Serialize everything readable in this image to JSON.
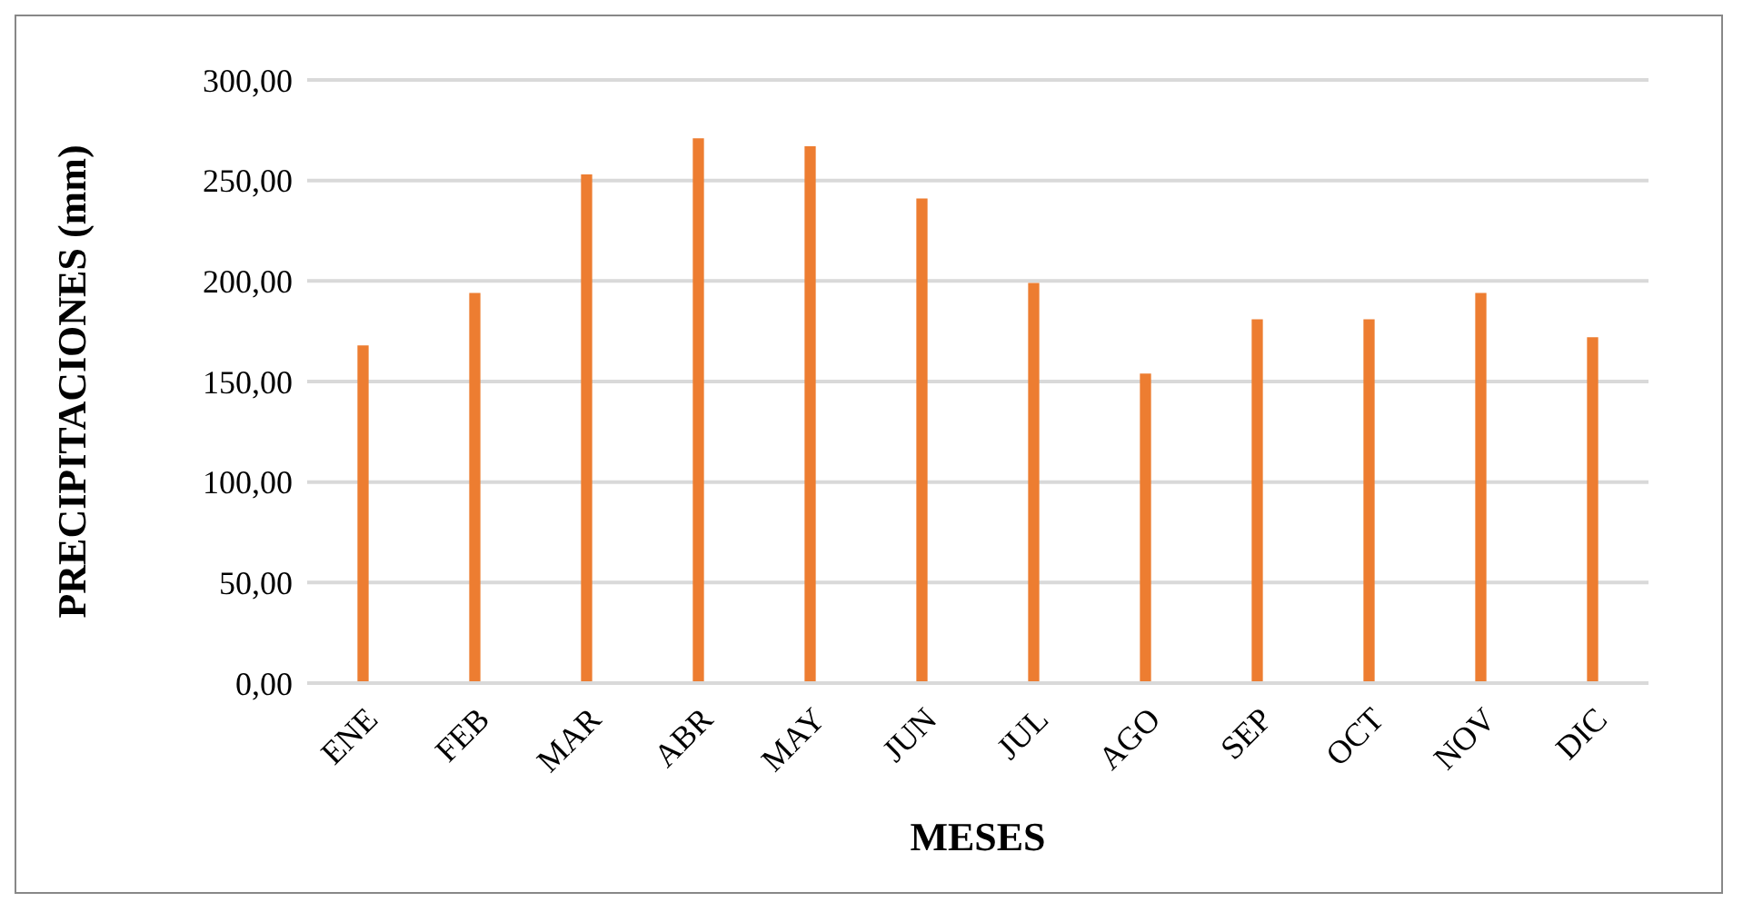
{
  "chart_data": {
    "type": "bar",
    "xlabel": "MESES",
    "ylabel": "PRECIPITACIONES (mm)",
    "categories": [
      "ENE",
      "FEB",
      "MAR",
      "ABR",
      "MAY",
      "JUN",
      "JUL",
      "AGO",
      "SEP",
      "OCT",
      "NOV",
      "DIC"
    ],
    "values": [
      168,
      194,
      253,
      271,
      267,
      241,
      199,
      154,
      181,
      181,
      194,
      172
    ],
    "color": "#ed7d31",
    "ylim": [
      0,
      300
    ],
    "yticks": [
      {
        "value": 0,
        "label": "0,00"
      },
      {
        "value": 50,
        "label": "50,00"
      },
      {
        "value": 100,
        "label": "100,00"
      },
      {
        "value": 150,
        "label": "150,00"
      },
      {
        "value": 200,
        "label": "200,00"
      },
      {
        "value": 250,
        "label": "250,00"
      },
      {
        "value": 300,
        "label": "300,00"
      }
    ],
    "grid": "y"
  }
}
